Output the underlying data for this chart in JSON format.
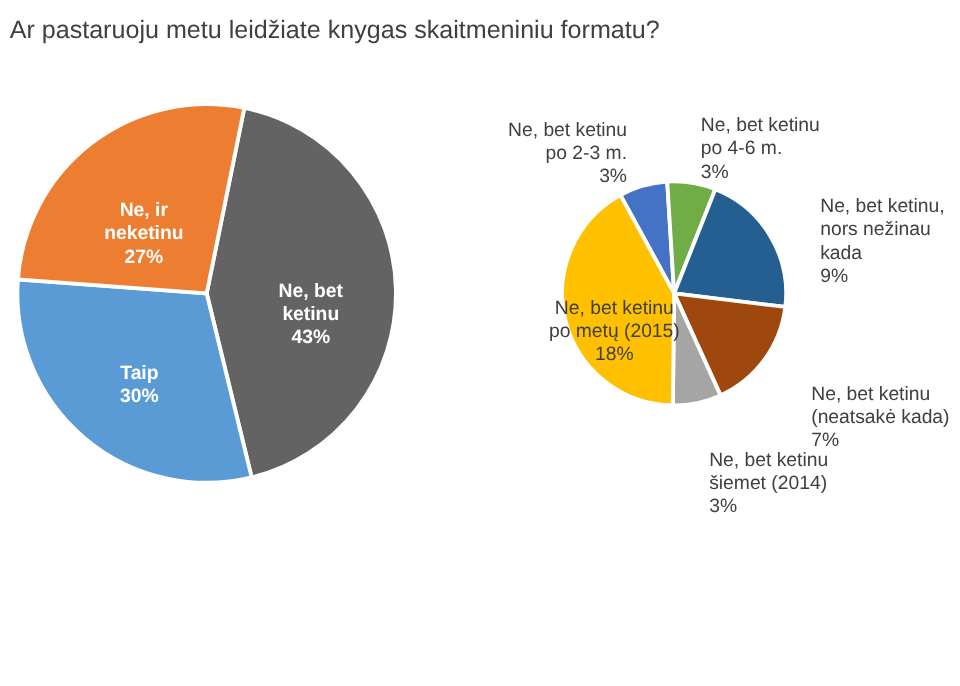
{
  "chart_data": [
    {
      "type": "pie",
      "title": "Ar pastaruoju metu leidžiate knygas skaitmeniniu formatu?",
      "categories": [
        "Ne, bet ketinu",
        "Taip",
        "Ne, ir neketinu"
      ],
      "values": [
        43,
        30,
        27
      ],
      "value_labels": [
        "43%",
        "30%",
        "27%"
      ],
      "colors": [
        "#636363",
        "#5b9bd5",
        "#ed7d31"
      ],
      "legend": false
    },
    {
      "type": "pie",
      "categories": [
        "Ne, bet ketinu po 2-3 m.",
        "Ne, bet ketinu po 4-6 m.",
        "Ne, bet ketinu, nors nežinau kada",
        "Ne, bet ketinu (neatsakė kada)",
        "Ne, bet ketinu šiemet (2014)",
        "Ne, bet ketinu po metų (2015)"
      ],
      "values": [
        3,
        3,
        9,
        7,
        3,
        18
      ],
      "value_labels": [
        "3%",
        "3%",
        "9%",
        "7%",
        "3%",
        "18%"
      ],
      "colors": [
        "#4472c4",
        "#70ad47",
        "#255e91",
        "#9e480e",
        "#a5a5a5",
        "#ffc000"
      ],
      "legend": false
    }
  ]
}
